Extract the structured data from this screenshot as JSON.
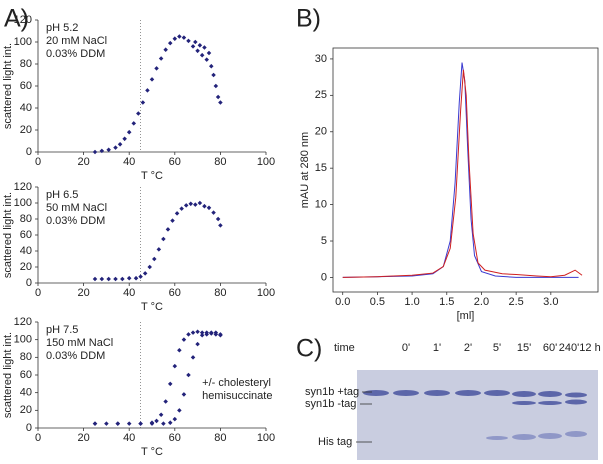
{
  "panel_labels": [
    "A)",
    "B)",
    "C)"
  ],
  "chart_data": [
    {
      "type": "scatter",
      "xlabel": "T °C",
      "ylabel": "scattered light int.",
      "annotation": [
        "pH 5.2",
        "20 mM NaCl",
        "0.03% DDM"
      ],
      "vline": 45,
      "xlim": [
        0,
        100
      ],
      "xticks": [
        0,
        20,
        40,
        60,
        80,
        100
      ],
      "ylim": [
        0,
        120
      ],
      "yticks": [
        0,
        20,
        40,
        60,
        80,
        100,
        120
      ],
      "series": [
        {
          "color": "#23237a",
          "x": [
            25,
            28,
            31,
            34,
            36,
            38,
            40,
            42,
            44,
            46,
            48,
            50,
            52,
            54,
            56,
            58,
            60,
            62,
            64,
            66,
            68,
            69,
            70,
            71,
            72,
            73,
            74,
            75,
            76,
            77,
            78,
            79,
            80
          ],
          "values": [
            0,
            1,
            2,
            4,
            7,
            12,
            18,
            26,
            35,
            45,
            56,
            66,
            76,
            85,
            93,
            99,
            103,
            105,
            104,
            101,
            96,
            100,
            92,
            97,
            88,
            95,
            84,
            90,
            78,
            70,
            60,
            50,
            45
          ]
        }
      ]
    },
    {
      "type": "scatter",
      "xlabel": "T °C",
      "ylabel": "scattered light int.",
      "annotation": [
        "pH 6.5",
        "50 mM NaCl",
        "0.03% DDM"
      ],
      "vline": 45,
      "xlim": [
        0,
        100
      ],
      "xticks": [
        0,
        20,
        40,
        60,
        80,
        100
      ],
      "ylim": [
        0,
        120
      ],
      "yticks": [
        0,
        20,
        40,
        60,
        80,
        100,
        120
      ],
      "series": [
        {
          "color": "#23237a",
          "x": [
            25,
            28,
            31,
            34,
            37,
            40,
            43,
            45,
            47,
            49,
            51,
            53,
            55,
            57,
            59,
            61,
            63,
            65,
            67,
            69,
            71,
            73,
            75,
            77,
            79,
            80
          ],
          "values": [
            5,
            5,
            5,
            5,
            5,
            6,
            6,
            8,
            12,
            20,
            30,
            42,
            55,
            67,
            78,
            87,
            93,
            97,
            99,
            98,
            100,
            96,
            94,
            88,
            80,
            72
          ]
        }
      ]
    },
    {
      "type": "scatter",
      "xlabel": "T °C",
      "ylabel": "scattered light int.",
      "annotation": [
        "pH 7.5",
        "150 mM NaCl",
        "0.03% DDM"
      ],
      "vline": 45,
      "note": [
        "+/- cholesteryl",
        "hemisuccinate"
      ],
      "xlim": [
        0,
        100
      ],
      "xticks": [
        0,
        20,
        40,
        60,
        80,
        100
      ],
      "ylim": [
        0,
        120
      ],
      "yticks": [
        0,
        20,
        40,
        60,
        80,
        100,
        120
      ],
      "series": [
        {
          "color": "#23237a",
          "x": [
            25,
            30,
            35,
            40,
            45,
            50,
            52,
            54,
            56,
            58,
            60,
            62,
            64,
            66,
            68,
            70,
            72,
            74,
            76,
            78,
            80
          ],
          "values": [
            5,
            5,
            5,
            5,
            5,
            6,
            8,
            15,
            30,
            50,
            70,
            88,
            100,
            106,
            108,
            109,
            108,
            106,
            107,
            108,
            106
          ]
        },
        {
          "color": "#23237a",
          "x": [
            25,
            35,
            45,
            50,
            55,
            58,
            60,
            62,
            64,
            66,
            68,
            70,
            72,
            74,
            76,
            78,
            80
          ],
          "values": [
            5,
            5,
            5,
            5,
            5,
            6,
            10,
            20,
            38,
            60,
            80,
            95,
            105,
            108,
            108,
            106,
            105
          ]
        }
      ]
    },
    {
      "type": "line",
      "xlabel": "[ml]",
      "ylabel": "mAU at 280 nm",
      "xlim": [
        -0.14,
        3.68
      ],
      "xticks": [
        {
          "value": 0,
          "label": "0.0"
        },
        0.5,
        {
          "value": 1,
          "label": "1.0"
        },
        1.5,
        {
          "value": 2,
          "label": "2.0"
        },
        2.5,
        {
          "value": 3,
          "label": "3.0"
        }
      ],
      "ylim": [
        -2,
        31.5
      ],
      "yticks": [
        0,
        5,
        10,
        15,
        20,
        25,
        30
      ],
      "series": [
        {
          "color": "#3a3ad0",
          "x": [
            0,
            0.5,
            1.0,
            1.3,
            1.45,
            1.55,
            1.62,
            1.68,
            1.72,
            1.76,
            1.8,
            1.85,
            1.9,
            2.0,
            2.2,
            2.5,
            3.0,
            3.4
          ],
          "values": [
            0,
            0.1,
            0.2,
            0.5,
            1.5,
            5,
            13,
            24,
            29.5,
            27,
            18,
            8,
            3,
            0.8,
            0.2,
            0,
            0,
            0
          ]
        },
        {
          "color": "#d02020",
          "x": [
            0,
            0.5,
            1.0,
            1.3,
            1.45,
            1.55,
            1.63,
            1.7,
            1.74,
            1.78,
            1.82,
            1.88,
            1.95,
            2.05,
            2.3,
            2.5,
            2.8,
            3.0,
            3.2,
            3.35,
            3.45
          ],
          "values": [
            0,
            0.1,
            0.3,
            0.6,
            1.5,
            4,
            11,
            23,
            28.5,
            25,
            16,
            6,
            2,
            1,
            0.5,
            0.4,
            0.2,
            0.1,
            0.3,
            1,
            0.3
          ]
        }
      ]
    }
  ],
  "gel": {
    "time_label": "time",
    "lanes": [
      "0'",
      "1'",
      "2'",
      "5'",
      "15'",
      "60'",
      "240'",
      "12 h"
    ],
    "bands": [
      "syn1b +tag",
      "syn1b -tag",
      "His tag"
    ]
  }
}
